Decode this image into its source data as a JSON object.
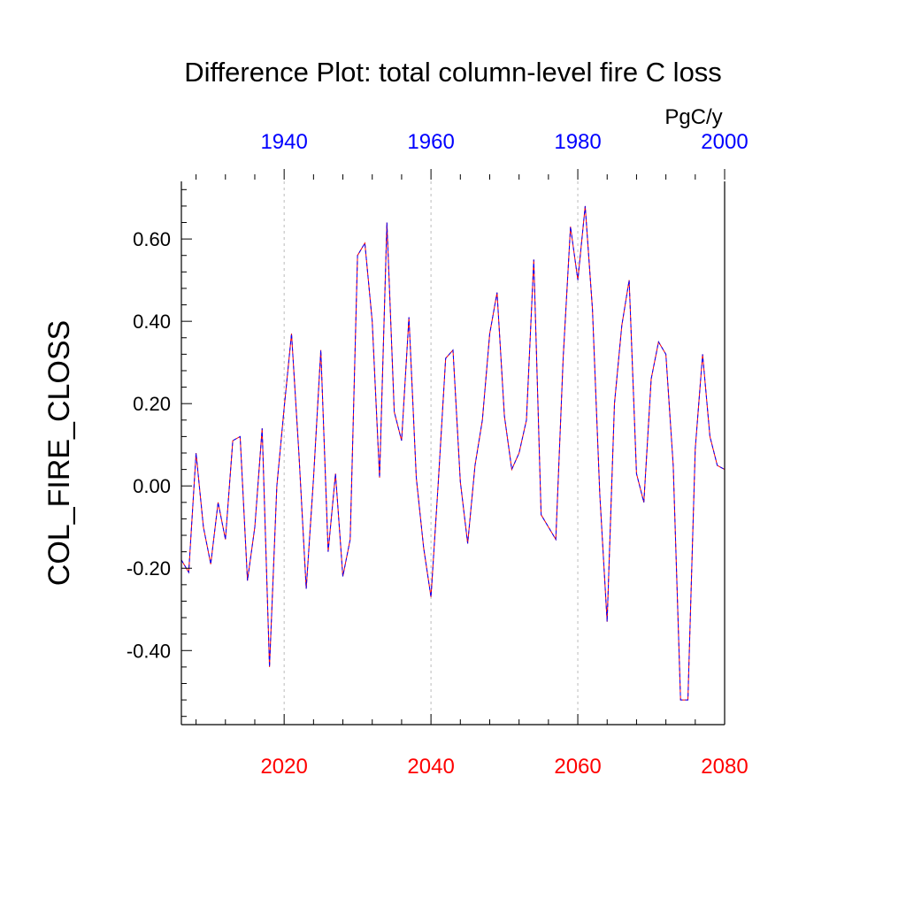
{
  "chart_data": {
    "type": "line",
    "title": "Difference Plot: total column-level fire C loss",
    "units": "PgC/y",
    "ylabel": "COL_FIRE_CLOSS",
    "xlabel": "",
    "xlim": [
      2006,
      2080
    ],
    "ylim": [
      -0.58,
      0.74
    ],
    "yticks": [
      -0.4,
      -0.2,
      0.0,
      0.2,
      0.4,
      0.6
    ],
    "ytick_labels": [
      "-0.40",
      "-0.20",
      "0.00",
      "0.20",
      "0.40",
      "0.60"
    ],
    "bottom_axis": {
      "color": "#ff0000",
      "ticks": [
        2020,
        2040,
        2060,
        2080
      ],
      "tick_labels": [
        "2020",
        "2040",
        "2060",
        "2080"
      ]
    },
    "top_axis": {
      "color": "#0000ff",
      "ticks": [
        1940,
        1960,
        1980,
        2000
      ],
      "tick_labels": [
        "1940",
        "1960",
        "1980",
        "2000"
      ],
      "offset_years": -80
    },
    "grid": {
      "vertical_dashed_at": [
        2020,
        2040,
        2060
      ]
    },
    "series": [
      {
        "color": "#ff0000",
        "style": "solid",
        "x": [
          2006,
          2007,
          2008,
          2009,
          2010,
          2011,
          2012,
          2013,
          2014,
          2015,
          2016,
          2017,
          2018,
          2019,
          2020,
          2021,
          2022,
          2023,
          2024,
          2025,
          2026,
          2027,
          2028,
          2029,
          2030,
          2031,
          2032,
          2033,
          2034,
          2035,
          2036,
          2037,
          2038,
          2039,
          2040,
          2041,
          2042,
          2043,
          2044,
          2045,
          2046,
          2047,
          2048,
          2049,
          2050,
          2051,
          2052,
          2053,
          2054,
          2055,
          2056,
          2057,
          2058,
          2059,
          2060,
          2061,
          2062,
          2063,
          2064,
          2065,
          2066,
          2067,
          2068,
          2069,
          2070,
          2071,
          2072,
          2073,
          2074,
          2075,
          2076,
          2077,
          2078,
          2079,
          2080
        ],
        "y": [
          -0.18,
          -0.21,
          0.08,
          -0.1,
          -0.19,
          -0.04,
          -0.13,
          0.11,
          0.12,
          -0.23,
          -0.1,
          0.14,
          -0.44,
          0.0,
          0.19,
          0.37,
          0.08,
          -0.25,
          0.02,
          0.33,
          -0.16,
          0.03,
          -0.22,
          -0.13,
          0.56,
          0.59,
          0.4,
          0.02,
          0.64,
          0.18,
          0.11,
          0.41,
          0.02,
          -0.15,
          -0.27,
          0.01,
          0.31,
          0.33,
          0.01,
          -0.14,
          0.05,
          0.16,
          0.37,
          0.47,
          0.17,
          0.04,
          0.08,
          0.16,
          0.55,
          -0.07,
          -0.1,
          -0.13,
          0.31,
          0.63,
          0.5,
          0.68,
          0.43,
          -0.02,
          -0.33,
          0.2,
          0.39,
          0.5,
          0.03,
          -0.04,
          0.26,
          0.35,
          0.32,
          0.05,
          -0.52,
          -0.52,
          0.09,
          0.32,
          0.12,
          0.05,
          0.04
        ]
      },
      {
        "color": "#0000ff",
        "style": "dashed",
        "x": [
          2006,
          2007,
          2008,
          2009,
          2010,
          2011,
          2012,
          2013,
          2014,
          2015,
          2016,
          2017,
          2018,
          2019,
          2020,
          2021,
          2022,
          2023,
          2024,
          2025,
          2026,
          2027,
          2028,
          2029,
          2030,
          2031,
          2032,
          2033,
          2034,
          2035,
          2036,
          2037,
          2038,
          2039,
          2040,
          2041,
          2042,
          2043,
          2044,
          2045,
          2046,
          2047,
          2048,
          2049,
          2050,
          2051,
          2052,
          2053,
          2054,
          2055,
          2056,
          2057,
          2058,
          2059,
          2060,
          2061,
          2062,
          2063,
          2064,
          2065,
          2066,
          2067,
          2068,
          2069,
          2070,
          2071,
          2072,
          2073,
          2074,
          2075,
          2076,
          2077,
          2078,
          2079,
          2080
        ],
        "y": [
          -0.18,
          -0.21,
          0.08,
          -0.1,
          -0.19,
          -0.04,
          -0.13,
          0.11,
          0.12,
          -0.23,
          -0.1,
          0.14,
          -0.44,
          0.0,
          0.19,
          0.37,
          0.08,
          -0.25,
          0.02,
          0.33,
          -0.16,
          0.03,
          -0.22,
          -0.13,
          0.56,
          0.59,
          0.4,
          0.02,
          0.64,
          0.18,
          0.11,
          0.41,
          0.02,
          -0.15,
          -0.27,
          0.01,
          0.31,
          0.33,
          0.01,
          -0.14,
          0.05,
          0.16,
          0.37,
          0.47,
          0.17,
          0.04,
          0.08,
          0.16,
          0.55,
          -0.07,
          -0.1,
          -0.13,
          0.31,
          0.63,
          0.5,
          0.68,
          0.43,
          -0.02,
          -0.33,
          0.2,
          0.39,
          0.5,
          0.03,
          -0.04,
          0.26,
          0.35,
          0.32,
          0.05,
          -0.52,
          -0.52,
          0.09,
          0.32,
          0.12,
          0.05,
          0.04
        ]
      }
    ]
  }
}
